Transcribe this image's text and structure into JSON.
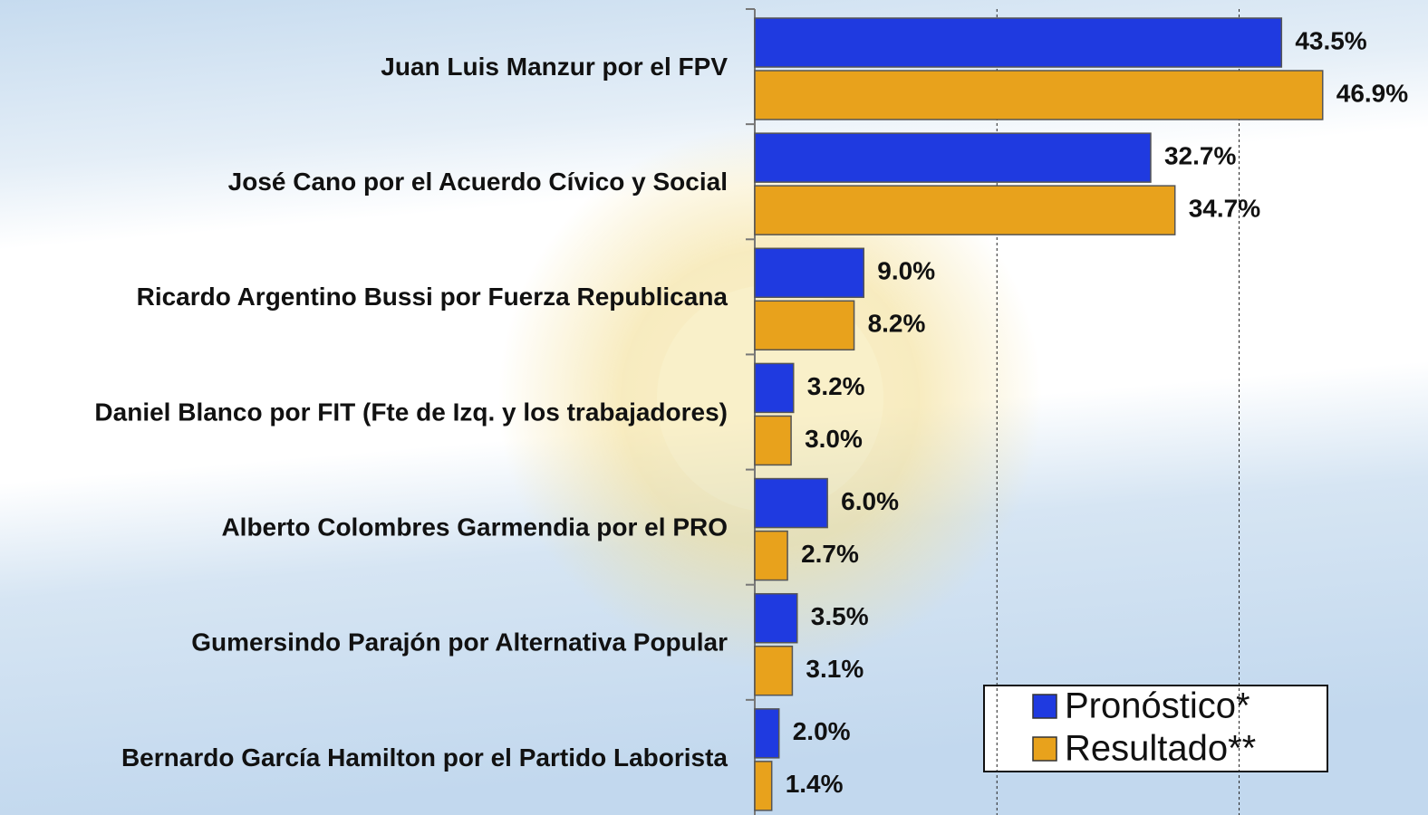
{
  "chart_data": {
    "type": "barh",
    "categories": [
      "Juan Luis Manzur por el FPV",
      "José Cano por el Acuerdo Cívico y Social",
      "Ricardo Argentino Bussi por Fuerza Republicana",
      "Daniel Blanco por FIT (Fte de Izq. y los trabajadores)",
      "Alberto Colombres Garmendia por el PRO",
      "Gumersindo Parajón por Alternativa Popular",
      "Bernardo García Hamilton por el Partido Laborista"
    ],
    "series": [
      {
        "name": "Pronóstico*",
        "color": "#1f3ae0",
        "values": [
          43.5,
          32.7,
          9.0,
          3.2,
          6.0,
          3.5,
          2.0
        ],
        "value_labels": [
          "43.5%",
          "32.7%",
          "9.0%",
          "3.2%",
          "6.0%",
          "3.5%",
          "2.0%"
        ]
      },
      {
        "name": "Resultado**",
        "color": "#e8a21c",
        "values": [
          46.9,
          34.7,
          8.2,
          3.0,
          2.7,
          3.1,
          1.4
        ],
        "value_labels": [
          "46.9%",
          "34.7%",
          "8.2%",
          "3.0%",
          "2.7%",
          "3.1%",
          "1.4%"
        ]
      }
    ],
    "xlim": [
      0,
      55
    ],
    "xticks": [
      20,
      40
    ],
    "grid": true,
    "legend": "bottom-right"
  }
}
